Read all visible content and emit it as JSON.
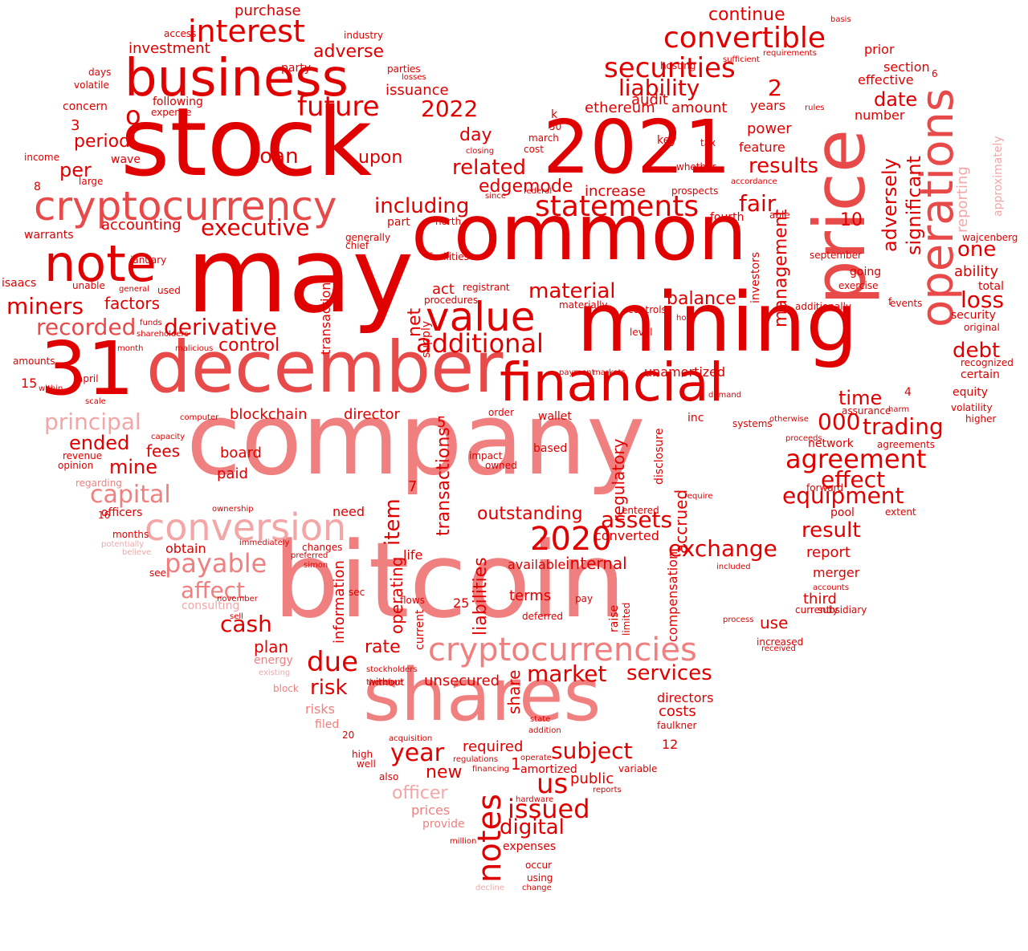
{
  "palette": {
    "dark": "#e00000",
    "medium": "#e84a4a",
    "light": "#f08080",
    "pale": "#f4a6a6"
  },
  "words": [
    {
      "text": "company",
      "color": "light"
    },
    {
      "text": "bitcoin",
      "color": "light"
    },
    {
      "text": "stock",
      "color": "dark"
    },
    {
      "text": "may",
      "color": "dark"
    },
    {
      "text": "common",
      "color": "dark"
    },
    {
      "text": "mining",
      "color": "dark"
    },
    {
      "text": "december",
      "color": "medium"
    },
    {
      "text": "31",
      "color": "dark"
    },
    {
      "text": "shares",
      "color": "light"
    },
    {
      "text": "price",
      "color": "medium"
    },
    {
      "text": "2021",
      "color": "dark"
    },
    {
      "text": "business",
      "color": "dark"
    },
    {
      "text": "financial",
      "color": "dark"
    },
    {
      "text": "operations",
      "color": "medium"
    },
    {
      "text": "cryptocurrency",
      "color": "medium"
    },
    {
      "text": "note",
      "color": "dark"
    },
    {
      "text": "value",
      "color": "dark"
    },
    {
      "text": "cryptocurrencies",
      "color": "light"
    },
    {
      "text": "conversion",
      "color": "pale"
    },
    {
      "text": "statements",
      "color": "dark"
    },
    {
      "text": "convertible",
      "color": "dark"
    },
    {
      "text": "securities",
      "color": "dark"
    },
    {
      "text": "interest",
      "color": "dark"
    },
    {
      "text": "notes",
      "color": "dark"
    },
    {
      "text": "2020",
      "color": "dark"
    },
    {
      "text": "agreement",
      "color": "dark"
    },
    {
      "text": "future",
      "color": "dark"
    },
    {
      "text": "additional",
      "color": "dark"
    },
    {
      "text": "miners",
      "color": "dark"
    },
    {
      "text": "recorded",
      "color": "medium"
    },
    {
      "text": "derivative",
      "color": "dark"
    },
    {
      "text": "executive",
      "color": "dark"
    },
    {
      "text": "principal",
      "color": "pale"
    },
    {
      "text": "material",
      "color": "dark"
    },
    {
      "text": "including",
      "color": "dark"
    },
    {
      "text": "related",
      "color": "dark"
    },
    {
      "text": "results",
      "color": "dark"
    },
    {
      "text": "liability",
      "color": "dark"
    },
    {
      "text": "2",
      "color": "dark"
    },
    {
      "text": "2022",
      "color": "dark"
    },
    {
      "text": "payable",
      "color": "light"
    },
    {
      "text": "capital",
      "color": "light"
    },
    {
      "text": "affect",
      "color": "light"
    },
    {
      "text": "issued",
      "color": "dark"
    },
    {
      "text": "year",
      "color": "dark"
    },
    {
      "text": "equipment",
      "color": "dark"
    },
    {
      "text": "effect",
      "color": "dark"
    },
    {
      "text": "trading",
      "color": "dark"
    },
    {
      "text": "000",
      "color": "dark"
    },
    {
      "text": "exchange",
      "color": "dark"
    },
    {
      "text": "assets",
      "color": "dark"
    },
    {
      "text": "outstanding",
      "color": "dark"
    },
    {
      "text": "subject",
      "color": "dark"
    },
    {
      "text": "services",
      "color": "dark"
    },
    {
      "text": "market",
      "color": "dark"
    },
    {
      "text": "due",
      "color": "dark"
    },
    {
      "text": "risk",
      "color": "dark"
    },
    {
      "text": "cash",
      "color": "dark"
    },
    {
      "text": "digital",
      "color": "dark"
    },
    {
      "text": "us",
      "color": "dark"
    },
    {
      "text": "new",
      "color": "dark"
    },
    {
      "text": "loss",
      "color": "dark"
    },
    {
      "text": "debt",
      "color": "dark"
    },
    {
      "text": "one",
      "color": "dark"
    },
    {
      "text": "fair",
      "color": "dark"
    },
    {
      "text": "result",
      "color": "dark"
    },
    {
      "text": "time",
      "color": "dark"
    },
    {
      "text": "date",
      "color": "dark"
    },
    {
      "text": "balance",
      "color": "dark"
    },
    {
      "text": "control",
      "color": "dark"
    },
    {
      "text": "factors",
      "color": "dark"
    },
    {
      "text": "accounting",
      "color": "dark"
    },
    {
      "text": "ended",
      "color": "dark"
    },
    {
      "text": "mine",
      "color": "dark"
    },
    {
      "text": "fees",
      "color": "dark"
    },
    {
      "text": "loan",
      "color": "dark"
    },
    {
      "text": "per",
      "color": "dark"
    },
    {
      "text": "period",
      "color": "dark"
    },
    {
      "text": "investment",
      "color": "dark"
    },
    {
      "text": "adverse",
      "color": "dark"
    },
    {
      "text": "purchase",
      "color": "dark"
    },
    {
      "text": "issuance",
      "color": "dark"
    },
    {
      "text": "continue",
      "color": "dark"
    },
    {
      "text": "audit",
      "color": "dark"
    },
    {
      "text": "edgemode",
      "color": "dark"
    },
    {
      "text": "increase",
      "color": "dark"
    },
    {
      "text": "upon",
      "color": "dark"
    },
    {
      "text": "day",
      "color": "dark"
    },
    {
      "text": "ethereum",
      "color": "dark"
    },
    {
      "text": "amount",
      "color": "dark"
    },
    {
      "text": "power",
      "color": "dark"
    },
    {
      "text": "feature",
      "color": "dark"
    },
    {
      "text": "years",
      "color": "dark"
    },
    {
      "text": "effective",
      "color": "dark"
    },
    {
      "text": "number",
      "color": "dark"
    },
    {
      "text": "section",
      "color": "dark"
    },
    {
      "text": "prior",
      "color": "dark"
    },
    {
      "text": "ability",
      "color": "dark"
    },
    {
      "text": "total",
      "color": "dark"
    },
    {
      "text": "security",
      "color": "dark"
    },
    {
      "text": "certain",
      "color": "dark"
    },
    {
      "text": "equity",
      "color": "dark"
    },
    {
      "text": "network",
      "color": "dark"
    },
    {
      "text": "going",
      "color": "dark"
    },
    {
      "text": "pool",
      "color": "dark"
    },
    {
      "text": "report",
      "color": "dark"
    },
    {
      "text": "merger",
      "color": "dark"
    },
    {
      "text": "third",
      "color": "dark"
    },
    {
      "text": "currently",
      "color": "dark"
    },
    {
      "text": "use",
      "color": "dark"
    },
    {
      "text": "internal",
      "color": "dark"
    },
    {
      "text": "converted",
      "color": "dark"
    },
    {
      "text": "entered",
      "color": "dark"
    },
    {
      "text": "terms",
      "color": "dark"
    },
    {
      "text": "available",
      "color": "dark"
    },
    {
      "text": "required",
      "color": "dark"
    },
    {
      "text": "amortized",
      "color": "dark"
    },
    {
      "text": "public",
      "color": "dark"
    },
    {
      "text": "officer",
      "color": "pale"
    },
    {
      "text": "prices",
      "color": "light"
    },
    {
      "text": "provide",
      "color": "light"
    },
    {
      "text": "expenses",
      "color": "dark"
    },
    {
      "text": "occur",
      "color": "dark"
    },
    {
      "text": "using",
      "color": "dark"
    },
    {
      "text": "rate",
      "color": "dark"
    },
    {
      "text": "unsecured",
      "color": "dark"
    },
    {
      "text": "without",
      "color": "dark"
    },
    {
      "text": "risks",
      "color": "light"
    },
    {
      "text": "filed",
      "color": "light"
    },
    {
      "text": "block",
      "color": "light"
    },
    {
      "text": "energy",
      "color": "light"
    },
    {
      "text": "plan",
      "color": "dark"
    },
    {
      "text": "directors",
      "color": "dark"
    },
    {
      "text": "costs",
      "color": "dark"
    },
    {
      "text": "faulkner",
      "color": "dark"
    },
    {
      "text": "12",
      "color": "dark"
    },
    {
      "text": "blockchain",
      "color": "dark"
    },
    {
      "text": "director",
      "color": "dark"
    },
    {
      "text": "board",
      "color": "dark"
    },
    {
      "text": "paid",
      "color": "dark"
    },
    {
      "text": "obtain",
      "color": "dark"
    },
    {
      "text": "officers",
      "color": "dark"
    },
    {
      "text": "unamortized",
      "color": "dark"
    },
    {
      "text": "inc",
      "color": "dark"
    },
    {
      "text": "warrants",
      "color": "dark"
    },
    {
      "text": "isaacs",
      "color": "dark"
    },
    {
      "text": "unable",
      "color": "dark"
    },
    {
      "text": "following",
      "color": "dark"
    },
    {
      "text": "concern",
      "color": "dark"
    },
    {
      "text": "expense",
      "color": "dark"
    },
    {
      "text": "days",
      "color": "dark"
    },
    {
      "text": "volatile",
      "color": "dark"
    },
    {
      "text": "wave",
      "color": "dark"
    },
    {
      "text": "large",
      "color": "dark"
    },
    {
      "text": "income",
      "color": "dark"
    },
    {
      "text": "access",
      "color": "dark"
    },
    {
      "text": "party",
      "color": "dark"
    },
    {
      "text": "industry",
      "color": "dark"
    },
    {
      "text": "parties",
      "color": "dark"
    },
    {
      "text": "losses",
      "color": "dark"
    },
    {
      "text": "hosting",
      "color": "dark"
    },
    {
      "text": "sufficient",
      "color": "dark"
    },
    {
      "text": "requirements",
      "color": "dark"
    },
    {
      "text": "basis",
      "color": "dark"
    },
    {
      "text": "key",
      "color": "dark"
    },
    {
      "text": "tax",
      "color": "dark"
    },
    {
      "text": "whether",
      "color": "dark"
    },
    {
      "text": "prospects",
      "color": "dark"
    },
    {
      "text": "march",
      "color": "dark"
    },
    {
      "text": "cost",
      "color": "dark"
    },
    {
      "text": "50",
      "color": "dark"
    },
    {
      "text": "fourth",
      "color": "dark"
    },
    {
      "text": "able",
      "color": "dark"
    },
    {
      "text": "investors",
      "color": "dark"
    },
    {
      "text": "management",
      "color": "dark"
    },
    {
      "text": "significant",
      "color": "dark"
    },
    {
      "text": "adversely",
      "color": "dark"
    },
    {
      "text": "reporting",
      "color": "pale"
    },
    {
      "text": "approximately",
      "color": "pale"
    },
    {
      "text": "wajcenberg",
      "color": "dark"
    },
    {
      "text": "september",
      "color": "dark"
    },
    {
      "text": "exercise",
      "color": "dark"
    },
    {
      "text": "events",
      "color": "dark"
    },
    {
      "text": "additionally",
      "color": "dark"
    },
    {
      "text": "level",
      "color": "dark"
    },
    {
      "text": "hold",
      "color": "dark"
    },
    {
      "text": "controls",
      "color": "dark"
    },
    {
      "text": "materially",
      "color": "dark"
    },
    {
      "text": "registrant",
      "color": "dark"
    },
    {
      "text": "procedures",
      "color": "dark"
    },
    {
      "text": "facilities",
      "color": "dark"
    },
    {
      "text": "north",
      "color": "dark"
    },
    {
      "text": "act",
      "color": "dark"
    },
    {
      "text": "net",
      "color": "dark"
    },
    {
      "text": "supply",
      "color": "dark"
    },
    {
      "text": "transaction",
      "color": "dark"
    },
    {
      "text": "part",
      "color": "dark"
    },
    {
      "text": "generally",
      "color": "dark"
    },
    {
      "text": "chief",
      "color": "dark"
    },
    {
      "text": "january",
      "color": "dark"
    },
    {
      "text": "month",
      "color": "dark"
    },
    {
      "text": "shareholders",
      "color": "dark"
    },
    {
      "text": "funds",
      "color": "dark"
    },
    {
      "text": "malicious",
      "color": "dark"
    },
    {
      "text": "used",
      "color": "dark"
    },
    {
      "text": "general",
      "color": "dark"
    },
    {
      "text": "april",
      "color": "dark"
    },
    {
      "text": "amounts",
      "color": "dark"
    },
    {
      "text": "within",
      "color": "dark"
    },
    {
      "text": "scale",
      "color": "dark"
    },
    {
      "text": "computer",
      "color": "dark"
    },
    {
      "text": "capacity",
      "color": "dark"
    },
    {
      "text": "revenue",
      "color": "dark"
    },
    {
      "text": "opinion",
      "color": "dark"
    },
    {
      "text": "regarding",
      "color": "light"
    },
    {
      "text": "months",
      "color": "dark"
    },
    {
      "text": "consulting",
      "color": "pale"
    },
    {
      "text": "see",
      "color": "dark"
    },
    {
      "text": "immediately",
      "color": "dark"
    },
    {
      "text": "changes",
      "color": "dark"
    },
    {
      "text": "preferred",
      "color": "dark"
    },
    {
      "text": "simon",
      "color": "dark"
    },
    {
      "text": "ownership",
      "color": "dark"
    },
    {
      "text": "need",
      "color": "dark"
    },
    {
      "text": "life",
      "color": "dark"
    },
    {
      "text": "current",
      "color": "dark"
    },
    {
      "text": "operating",
      "color": "dark"
    },
    {
      "text": "flows",
      "color": "dark"
    },
    {
      "text": "sec",
      "color": "dark"
    },
    {
      "text": "deferred",
      "color": "dark"
    },
    {
      "text": "pay",
      "color": "dark"
    },
    {
      "text": "raise",
      "color": "dark"
    },
    {
      "text": "limited",
      "color": "dark"
    },
    {
      "text": "compensation",
      "color": "dark"
    },
    {
      "text": "accrued",
      "color": "dark"
    },
    {
      "text": "regulatory",
      "color": "dark"
    },
    {
      "text": "disclosure",
      "color": "dark"
    },
    {
      "text": "require",
      "color": "dark"
    },
    {
      "text": "forward",
      "color": "dark"
    },
    {
      "text": "extent",
      "color": "dark"
    },
    {
      "text": "agreements",
      "color": "dark"
    },
    {
      "text": "assurance",
      "color": "dark"
    },
    {
      "text": "higher",
      "color": "dark"
    },
    {
      "text": "volatility",
      "color": "dark"
    },
    {
      "text": "recognized",
      "color": "dark"
    },
    {
      "text": "original",
      "color": "dark"
    },
    {
      "text": "increased",
      "color": "dark"
    },
    {
      "text": "received",
      "color": "dark"
    },
    {
      "text": "subsidiary",
      "color": "dark"
    },
    {
      "text": "accounts",
      "color": "dark"
    },
    {
      "text": "process",
      "color": "dark"
    },
    {
      "text": "included",
      "color": "dark"
    },
    {
      "text": "wallet",
      "color": "dark"
    },
    {
      "text": "based",
      "color": "dark"
    },
    {
      "text": "item",
      "color": "dark"
    },
    {
      "text": "regulations",
      "color": "dark"
    },
    {
      "text": "financing",
      "color": "dark"
    },
    {
      "text": "operate",
      "color": "dark"
    },
    {
      "text": "state",
      "color": "dark"
    },
    {
      "text": "addition",
      "color": "dark"
    },
    {
      "text": "acquisition",
      "color": "dark"
    },
    {
      "text": "high",
      "color": "dark"
    },
    {
      "text": "well",
      "color": "dark"
    },
    {
      "text": "also",
      "color": "dark"
    },
    {
      "text": "stockholders",
      "color": "dark"
    },
    {
      "text": "therefore",
      "color": "dark"
    },
    {
      "text": "million",
      "color": "dark"
    },
    {
      "text": "decline",
      "color": "pale"
    },
    {
      "text": "change",
      "color": "dark"
    },
    {
      "text": "hardware",
      "color": "dark"
    },
    {
      "text": "reports",
      "color": "dark"
    },
    {
      "text": "variable",
      "color": "dark"
    },
    {
      "text": "existing",
      "color": "pale"
    },
    {
      "text": "sell",
      "color": "dark"
    },
    {
      "text": "november",
      "color": "dark"
    },
    {
      "text": "order",
      "color": "dark"
    },
    {
      "text": "impact",
      "color": "dark"
    },
    {
      "text": "owned",
      "color": "dark"
    },
    {
      "text": "demand",
      "color": "dark"
    },
    {
      "text": "payment",
      "color": "dark"
    },
    {
      "text": "markets",
      "color": "dark"
    },
    {
      "text": "systems",
      "color": "dark"
    },
    {
      "text": "otherwise",
      "color": "dark"
    },
    {
      "text": "proceeds",
      "color": "dark"
    },
    {
      "text": "harm",
      "color": "dark"
    },
    {
      "text": "rules",
      "color": "dark"
    },
    {
      "text": "closing",
      "color": "dark"
    },
    {
      "text": "since",
      "color": "dark"
    },
    {
      "text": "federal",
      "color": "dark"
    },
    {
      "text": "accordance",
      "color": "dark"
    },
    {
      "text": "believe",
      "color": "pale"
    },
    {
      "text": "potentially",
      "color": "pale"
    },
    {
      "text": "liabilities",
      "color": "dark"
    },
    {
      "text": "transactions",
      "color": "dark"
    },
    {
      "text": "share",
      "color": "dark"
    },
    {
      "text": "information",
      "color": "dark"
    },
    {
      "text": "10",
      "color": "dark"
    },
    {
      "text": "3",
      "color": "dark"
    },
    {
      "text": "8",
      "color": "dark"
    },
    {
      "text": "15",
      "color": "dark"
    },
    {
      "text": "16",
      "color": "dark"
    },
    {
      "text": "25",
      "color": "dark"
    },
    {
      "text": "5",
      "color": "dark"
    },
    {
      "text": "7",
      "color": "dark"
    },
    {
      "text": "4",
      "color": "dark"
    },
    {
      "text": "6",
      "color": "dark"
    },
    {
      "text": "1",
      "color": "dark"
    },
    {
      "text": "20",
      "color": "dark"
    },
    {
      "text": "k",
      "color": "dark"
    },
    {
      "text": "f",
      "color": "dark"
    },
    {
      "text": "o",
      "color": "dark"
    }
  ]
}
